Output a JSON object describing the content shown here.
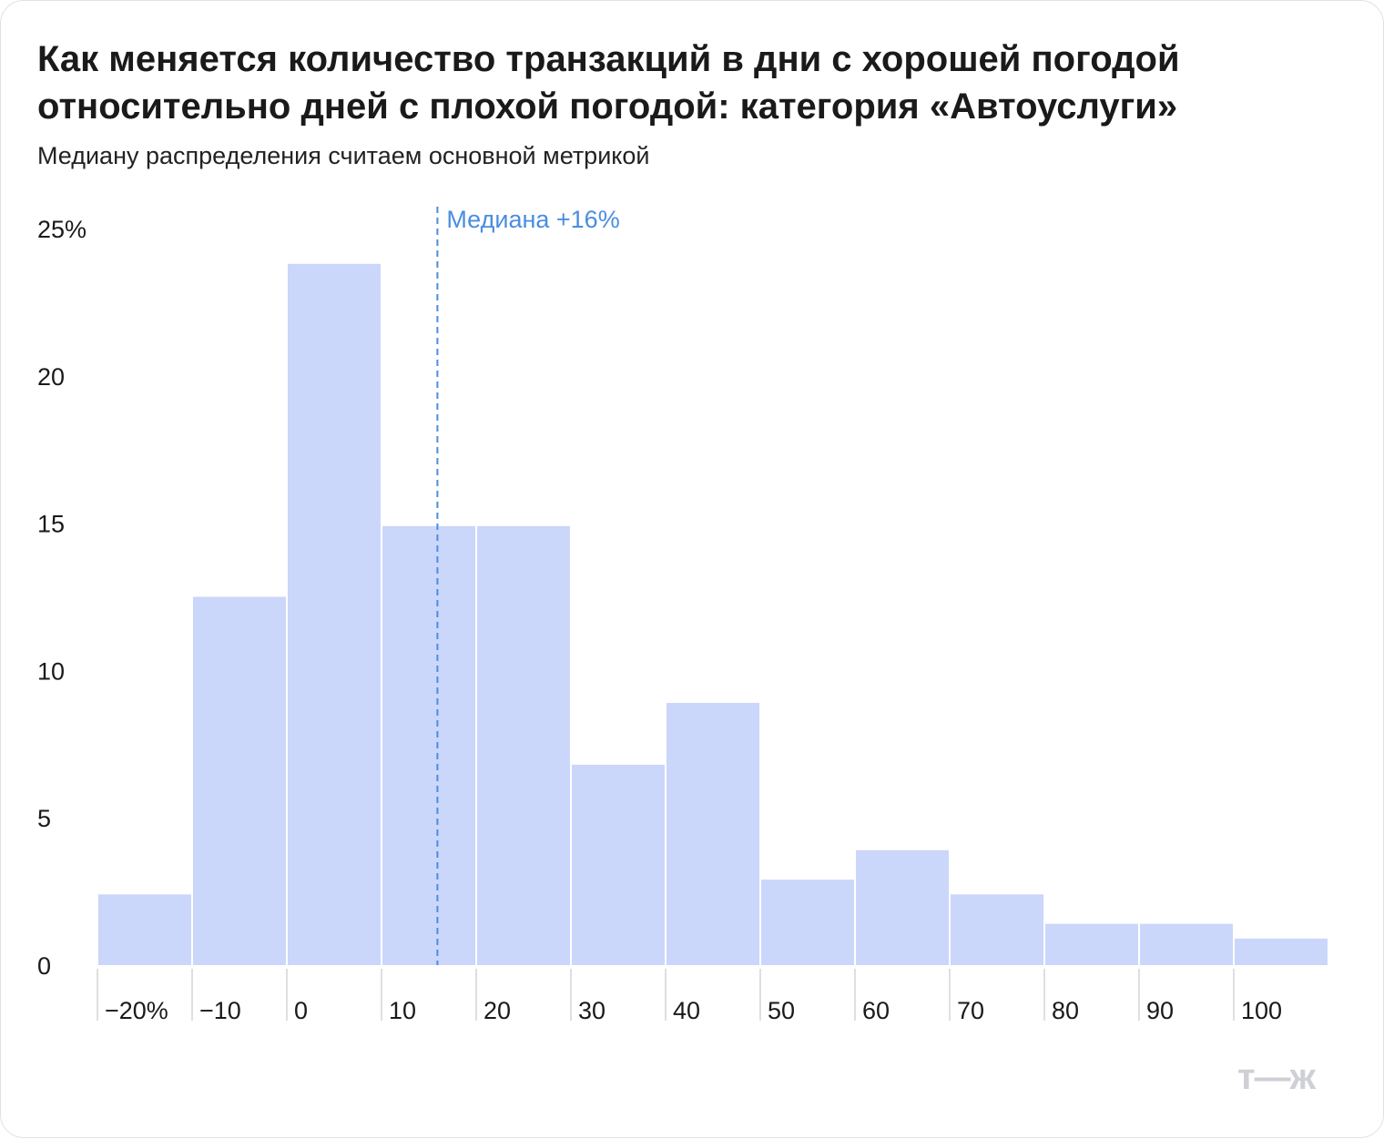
{
  "title": "Как меняется количество транзакций в дни с хорошей погодой относительно дней с плохой погодой: категория «Автоуслуги»",
  "subtitle": "Медиану распределения считаем основной метрикой",
  "logo_text": "т—ж",
  "colors": {
    "bar": "#cbd6fb",
    "median": "#4a8de0",
    "text": "#1a1a1a"
  },
  "chart_data": {
    "type": "bar",
    "title": "Как меняется количество транзакций в дни с хорошей погодой относительно дней с плохой погодой: категория «Автоуслуги»",
    "subtitle": "Медиану распределения считаем основной метрикой",
    "x_ticks": [
      "−20%",
      "−10",
      "0",
      "10",
      "20",
      "30",
      "40",
      "50",
      "60",
      "70",
      "80",
      "90",
      "100"
    ],
    "x_tick_values": [
      -20,
      -10,
      0,
      10,
      20,
      30,
      40,
      50,
      60,
      70,
      80,
      90,
      100
    ],
    "bins": [
      {
        "from": -20,
        "to": -10,
        "value": 2.4
      },
      {
        "from": -10,
        "to": 0,
        "value": 12.5
      },
      {
        "from": 0,
        "to": 10,
        "value": 23.8
      },
      {
        "from": 10,
        "to": 20,
        "value": 14.9
      },
      {
        "from": 20,
        "to": 30,
        "value": 14.9
      },
      {
        "from": 30,
        "to": 40,
        "value": 6.8
      },
      {
        "from": 40,
        "to": 50,
        "value": 8.9
      },
      {
        "from": 50,
        "to": 60,
        "value": 2.9
      },
      {
        "from": 60,
        "to": 70,
        "value": 3.9
      },
      {
        "from": 70,
        "to": 80,
        "value": 2.4
      },
      {
        "from": 80,
        "to": 90,
        "value": 1.4
      },
      {
        "from": 90,
        "to": 100,
        "value": 1.4
      },
      {
        "from": 100,
        "to": 110,
        "value": 0.9
      }
    ],
    "y_ticks": [
      "0",
      "5",
      "10",
      "15",
      "20",
      "25%"
    ],
    "y_tick_values": [
      0,
      5,
      10,
      15,
      20,
      25
    ],
    "xlim": [
      -20,
      110
    ],
    "ylim": [
      0,
      25
    ],
    "median": {
      "value": 16,
      "label": "Медиана +16%"
    },
    "grid": false,
    "legend": "none"
  }
}
